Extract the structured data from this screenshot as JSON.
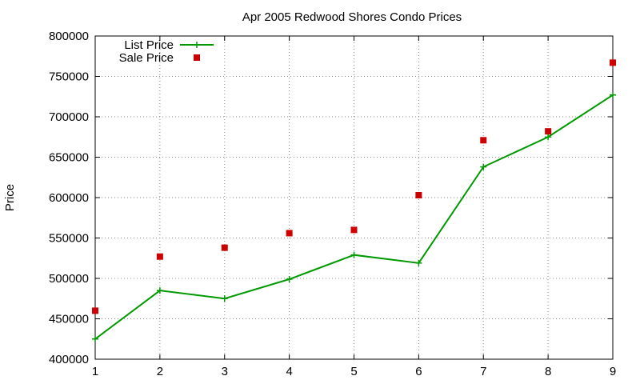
{
  "chart_data": {
    "type": "line",
    "title": "Apr 2005 Redwood Shores Condo Prices",
    "xlabel": "",
    "ylabel": "Price",
    "xlim": [
      1,
      9
    ],
    "ylim": [
      400000,
      800000
    ],
    "xticks": [
      1,
      2,
      3,
      4,
      5,
      6,
      7,
      8,
      9
    ],
    "yticks": [
      400000,
      450000,
      500000,
      550000,
      600000,
      650000,
      700000,
      750000,
      800000
    ],
    "grid": true,
    "legend_position": "top-left",
    "series": [
      {
        "name": "List Price",
        "style": "line-plus",
        "color": "#009900",
        "x": [
          1,
          2,
          3,
          4,
          5,
          6,
          7,
          8,
          9
        ],
        "y": [
          425000,
          485000,
          475000,
          499000,
          529000,
          519000,
          638000,
          675000,
          727000
        ]
      },
      {
        "name": "Sale Price",
        "style": "square-points",
        "color": "#cc0000",
        "x": [
          1,
          2,
          3,
          4,
          5,
          6,
          7,
          8,
          9
        ],
        "y": [
          460000,
          527000,
          538000,
          556000,
          560000,
          603000,
          671000,
          682000,
          767000
        ]
      }
    ]
  }
}
